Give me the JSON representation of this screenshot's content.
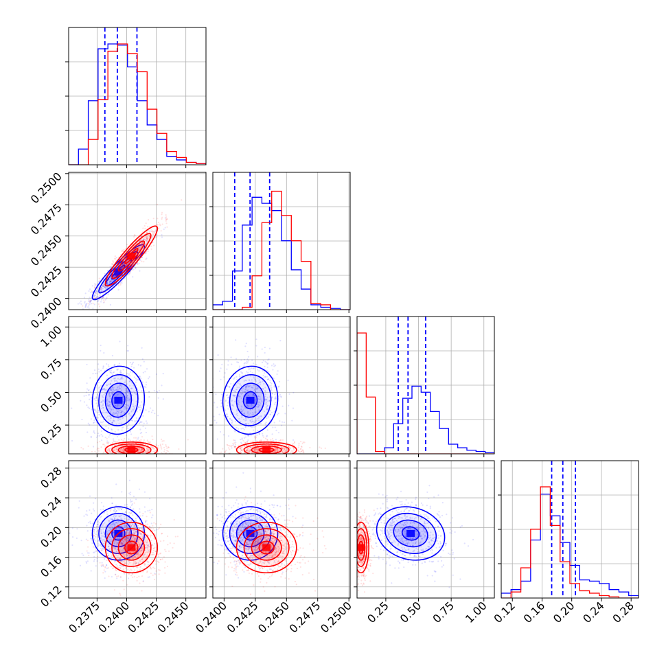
{
  "colors": {
    "series_a": "#0000ff",
    "series_b": "#ff0000",
    "grid": "#b0b0b0",
    "axis": "#000000"
  },
  "chart_data": {
    "type": "corner",
    "grid": true,
    "parameters": [
      {
        "range": [
          0.2351,
          0.2467
        ],
        "ticks": [
          0.2375,
          0.24,
          0.2425,
          0.245
        ],
        "tick_labels": [
          "0.2375",
          "0.2400",
          "0.2425",
          "0.2450"
        ]
      },
      {
        "range": [
          0.2391,
          0.2501
        ],
        "ticks": [
          0.24,
          0.2425,
          0.245,
          0.2475,
          0.25
        ],
        "tick_labels": [
          "0.2400",
          "0.2425",
          "0.2450",
          "0.2475",
          "0.2500"
        ]
      },
      {
        "range": [
          0.03,
          1.08
        ],
        "ticks": [
          0.25,
          0.5,
          0.75,
          1.0
        ],
        "tick_labels": [
          "0.25",
          "0.50",
          "0.75",
          "1.00"
        ]
      },
      {
        "range": [
          0.105,
          0.29
        ],
        "ticks": [
          0.12,
          0.16,
          0.2,
          0.24,
          0.28
        ],
        "tick_labels": [
          "0.12",
          "0.16",
          "0.20",
          "0.24",
          "0.28"
        ]
      }
    ],
    "series": [
      {
        "color": "#0000ff",
        "quantiles": [
          [
            0.23816,
            0.23921,
            0.24087
          ],
          [
            0.24085,
            0.24208,
            0.24365
          ],
          [
            0.345,
            0.42,
            0.555
          ],
          [
            0.173,
            0.188,
            0.205
          ]
        ],
        "hist": [
          [
            0.0,
            0.13,
            0.53,
            0.96,
            1.0,
            0.99,
            0.81,
            0.53,
            0.33,
            0.21,
            0.07,
            0.04,
            0.02,
            0.01
          ],
          [
            0.04,
            0.07,
            0.32,
            0.7,
            0.93,
            0.88,
            0.82,
            0.57,
            0.33,
            0.17,
            0.04,
            0.02,
            0.01,
            0.0
          ],
          [
            0.0,
            0.0,
            0.0,
            0.05,
            0.25,
            0.46,
            0.56,
            0.51,
            0.35,
            0.21,
            0.08,
            0.05,
            0.03,
            0.02,
            0.01
          ],
          [
            0.04,
            0.07,
            0.14,
            0.48,
            0.86,
            0.68,
            0.46,
            0.27,
            0.15,
            0.14,
            0.12,
            0.07,
            0.05,
            0.02
          ]
        ],
        "means": [
          0.2393,
          0.2421,
          0.44,
          0.192
        ],
        "sigmas": [
          0.0011,
          0.0011,
          0.13,
          0.018
        ],
        "corr": [
          [
            1,
            0.92,
            0.05,
            0.0
          ],
          [
            0.92,
            1,
            0.05,
            0.0
          ],
          [
            0.05,
            0.05,
            1,
            -0.15
          ],
          [
            0.0,
            0.0,
            -0.15,
            1
          ]
        ]
      },
      {
        "color": "#ff0000",
        "quantiles": [],
        "hist": [
          [
            0.0,
            0.0,
            0.21,
            0.54,
            0.94,
            1.0,
            0.92,
            0.77,
            0.46,
            0.26,
            0.11,
            0.06,
            0.02,
            0.01
          ],
          [
            0.0,
            0.0,
            0.0,
            0.02,
            0.28,
            0.72,
            0.98,
            0.78,
            0.57,
            0.4,
            0.05,
            0.04,
            0.0,
            0.0
          ],
          [
            1.0,
            0.47,
            0.02,
            0.0,
            0.0,
            0.0,
            0.0,
            0.0,
            0.0,
            0.0,
            0.0,
            0.0,
            0.0,
            0.0,
            0.0
          ],
          [
            0.0,
            0.05,
            0.25,
            0.57,
            0.92,
            0.6,
            0.3,
            0.12,
            0.06,
            0.04,
            0.02,
            0.01,
            0.0,
            0.0
          ]
        ],
        "means": [
          0.2404,
          0.2434,
          0.06,
          0.173
        ],
        "sigmas": [
          0.0011,
          0.0012,
          0.03,
          0.017
        ],
        "corr": [
          [
            1,
            0.92,
            0.0,
            0.0
          ],
          [
            0.92,
            1,
            0.0,
            0.0
          ],
          [
            0.0,
            0.0,
            1,
            0.0
          ],
          [
            0.0,
            0.0,
            0.0,
            1
          ]
        ]
      }
    ]
  }
}
